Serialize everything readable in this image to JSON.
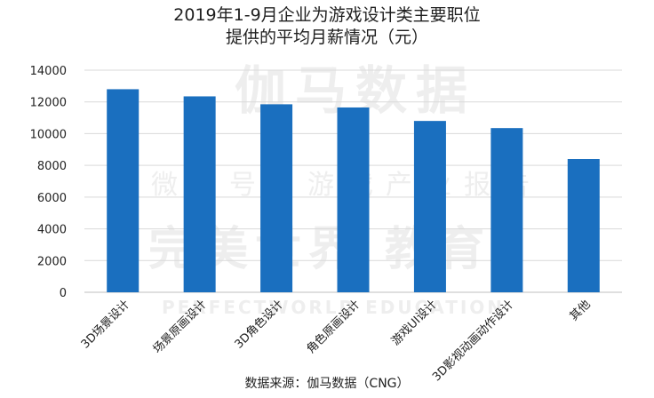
{
  "chart_data": {
    "type": "bar",
    "title": [
      "2019年1-9月企业为游戏设计类主要职位",
      "提供的平均月薪情况（元）"
    ],
    "categories": [
      "3D场景设计",
      "场景原画设计",
      "3D角色设计",
      "角色原画设计",
      "游戏UI设计",
      "3D影视动画动作设计",
      "其他"
    ],
    "values": [
      12800,
      12350,
      11850,
      11650,
      10800,
      10350,
      8400
    ],
    "ylim": [
      0,
      14000
    ],
    "yticks": [
      0,
      2000,
      4000,
      6000,
      8000,
      10000,
      12000,
      14000
    ],
    "grid": true,
    "legend": "none",
    "xlabel": "",
    "ylabel": "",
    "bar_color": "#1a6fbf",
    "grid_color": "#d9d9d9",
    "watermark": [
      "伽马数据",
      "微信号：游戏产业报告",
      "完美世界 教育",
      "PERFECTWORLD EDUCATION"
    ]
  },
  "source": "数据来源：伽马数据（CNG）"
}
